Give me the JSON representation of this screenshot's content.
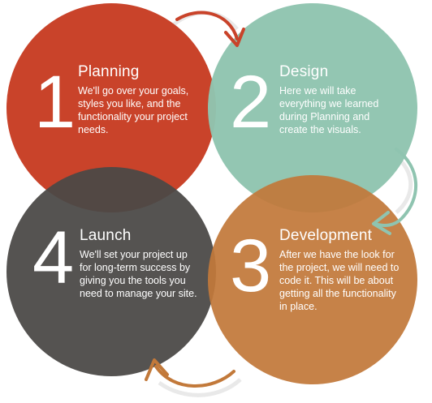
{
  "steps": [
    {
      "number": "1",
      "title": "Planning",
      "body": "We'll go over your goals, styles you like, and the functionality your project needs.",
      "color": "#c9432a"
    },
    {
      "number": "2",
      "title": "Design",
      "body": "Here we will take everything we learned during Planning and create the visuals.",
      "color": "#8fc4b0"
    },
    {
      "number": "3",
      "title": "Development",
      "body": "After we have the look for the project, we will need to code it. This will be about getting all the functionality in place.",
      "color": "#c2793a"
    },
    {
      "number": "4",
      "title": "Launch",
      "body": "We'll set your project up for long-term success by giving you the tools you need to manage your site.",
      "color": "#4a4846"
    }
  ],
  "arrows": [
    {
      "from": "1",
      "to": "2",
      "color": "#c9432a"
    },
    {
      "from": "2",
      "to": "3",
      "color": "#8fc4b0"
    },
    {
      "from": "3",
      "to": "4",
      "color": "#c2793a"
    }
  ]
}
